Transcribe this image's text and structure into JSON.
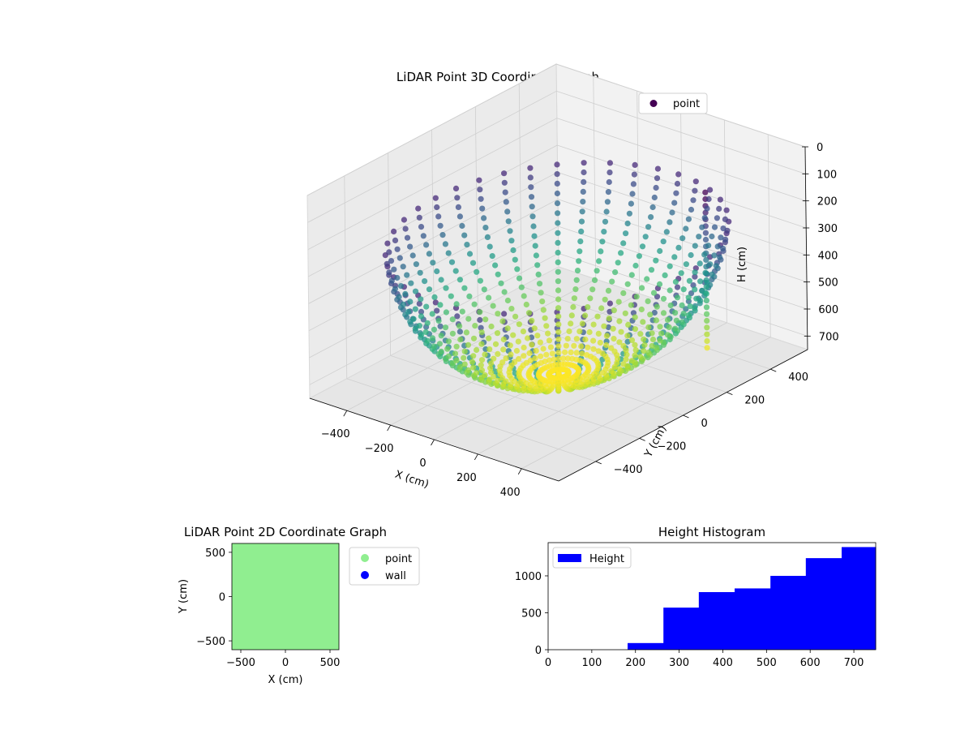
{
  "chart_data": [
    {
      "type": "scatter",
      "projection": "3d",
      "title": "LiDAR Point 3D Coordinate Graph",
      "xlabel": "X (cm)",
      "ylabel": "Y (cm)",
      "zlabel": "H (cm)",
      "x_ticks": [
        -400,
        -200,
        0,
        200,
        400
      ],
      "y_ticks": [
        -400,
        -200,
        0,
        200,
        400
      ],
      "z_ticks": [
        0,
        100,
        200,
        300,
        400,
        500,
        600,
        700
      ],
      "x_tick_labels": [
        "−400",
        "−200",
        "0",
        "200",
        "400"
      ],
      "y_tick_labels": [
        "−400",
        "−200",
        "0",
        "200",
        "400"
      ],
      "z_tick_labels": [
        "0",
        "100",
        "200",
        "300",
        "400",
        "500",
        "600",
        "700"
      ],
      "xlim": [
        -570,
        570
      ],
      "ylim": [
        -570,
        570
      ],
      "zlim": [
        0,
        750
      ],
      "z_inverted": true,
      "colormap": "viridis",
      "legend": {
        "position": "top-right",
        "entries": [
          {
            "label": "point",
            "color": "#440154"
          }
        ]
      },
      "grid": true,
      "series": [
        {
          "name": "point",
          "shape": "dome of radial scan arcs",
          "radius_cm": 560,
          "h_range": [
            180,
            750
          ]
        }
      ]
    },
    {
      "type": "scatter",
      "title": "LiDAR Point 2D Coordinate Graph",
      "xlabel": "X (cm)",
      "ylabel": "Y (cm)",
      "xlim": [
        -600,
        600
      ],
      "ylim": [
        -600,
        600
      ],
      "x_ticks": [
        -500,
        0,
        500
      ],
      "y_ticks": [
        -500,
        0,
        500
      ],
      "x_tick_labels": [
        "−500",
        "0",
        "500"
      ],
      "y_tick_labels": [
        "−500",
        "0",
        "500"
      ],
      "legend": {
        "position": "outside-right",
        "entries": [
          {
            "label": "point",
            "color": "#90ee90"
          },
          {
            "label": "wall",
            "color": "#0000ff"
          }
        ]
      },
      "fill_color": "#90ee90"
    },
    {
      "type": "bar",
      "title": "Height Histogram",
      "legend": {
        "position": "top-left",
        "entries": [
          {
            "label": "Height",
            "color": "#0000ff"
          }
        ]
      },
      "xlim": [
        0,
        750
      ],
      "ylim": [
        0,
        1450
      ],
      "x_ticks": [
        0,
        100,
        200,
        300,
        400,
        500,
        600,
        700
      ],
      "y_ticks": [
        0,
        500,
        1000
      ],
      "x_tick_labels": [
        "0",
        "100",
        "200",
        "300",
        "400",
        "500",
        "600",
        "700"
      ],
      "y_tick_labels": [
        "0",
        "500",
        "1000"
      ],
      "bin_edges": [
        0,
        84,
        168,
        182,
        264,
        345,
        427,
        509,
        590,
        672,
        750
      ],
      "values": [
        0,
        0,
        0,
        90,
        570,
        780,
        830,
        1000,
        1240,
        1390
      ],
      "color": "#0000ff"
    }
  ]
}
